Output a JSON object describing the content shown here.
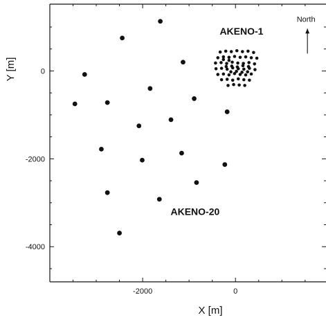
{
  "chart_data": {
    "type": "scatter",
    "xlabel": "X [m]",
    "ylabel": "Y [m]",
    "xlim": [
      -4000,
      1950
    ],
    "ylim": [
      -4800,
      1520
    ],
    "xticks": [
      -2000,
      0
    ],
    "yticks": [
      0,
      -2000,
      -4000
    ],
    "grid": false,
    "annotations": [
      {
        "text": "AKENO-1",
        "x": 130,
        "y": 830
      },
      {
        "text": "AKENO-20",
        "x": -870,
        "y": -3280
      },
      {
        "text": "North",
        "x": 1520,
        "y": 1120,
        "arrow": true
      }
    ],
    "series": [
      {
        "x": [
          -1620,
          -2440,
          -1130,
          -3250,
          -1840,
          -890,
          -3460,
          -2760,
          -1390,
          -2080,
          -180,
          -2890,
          -1160,
          -2010,
          -230,
          -840,
          -2760,
          -1640,
          -2500
        ],
        "y": [
          1130,
          750,
          200,
          -80,
          -400,
          -630,
          -750,
          -720,
          -1110,
          -1250,
          -930,
          -1780,
          -1870,
          -2030,
          -2130,
          -2540,
          -2770,
          -2920,
          -3690
        ]
      },
      {
        "x": [
          -330,
          -210,
          -90,
          30,
          150,
          270,
          390,
          -380,
          -260,
          -140,
          -20,
          100,
          220,
          340,
          460,
          -430,
          -310,
          -190,
          -70,
          50,
          170,
          290,
          410,
          -420,
          -300,
          -180,
          -60,
          60,
          180,
          300,
          420,
          -380,
          -260,
          -140,
          -20,
          100,
          220,
          340,
          -300,
          -180,
          -60,
          60,
          180,
          300,
          -160,
          -40,
          80,
          200,
          -200,
          -80,
          40,
          160,
          280,
          -100,
          20,
          140,
          260,
          -260,
          -140
        ],
        "y": [
          430,
          450,
          440,
          460,
          440,
          450,
          420,
          300,
          320,
          310,
          330,
          310,
          320,
          300,
          290,
          180,
          190,
          170,
          200,
          180,
          170,
          190,
          160,
          50,
          60,
          40,
          70,
          50,
          40,
          60,
          30,
          -80,
          -70,
          -90,
          -60,
          -80,
          -90,
          -70,
          -200,
          -190,
          -210,
          -180,
          -200,
          -210,
          -330,
          -310,
          -320,
          -330,
          100,
          110,
          90,
          120,
          100,
          -20,
          -10,
          -30,
          -20,
          260,
          240
        ]
      }
    ]
  }
}
